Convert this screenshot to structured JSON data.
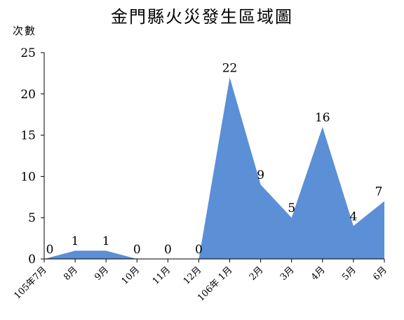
{
  "chart_data": {
    "type": "area",
    "title": "金門縣火災發生區域圖",
    "ylabel": "次數",
    "xlabel": "",
    "categories": [
      "105年7月",
      "8月",
      "9月",
      "10月",
      "11月",
      "12月",
      "106年 1月",
      "2月",
      "3月",
      "4月",
      "5月",
      "6月"
    ],
    "series": [
      {
        "values": [
          0,
          1,
          1,
          0,
          0,
          0,
          22,
          9,
          5,
          16,
          4,
          7
        ]
      }
    ],
    "ylim": [
      0,
      25
    ],
    "yticks": [
      0,
      5,
      10,
      15,
      20,
      25
    ],
    "grid": false,
    "legend": "none",
    "fill_color": "#5b8fd6"
  }
}
